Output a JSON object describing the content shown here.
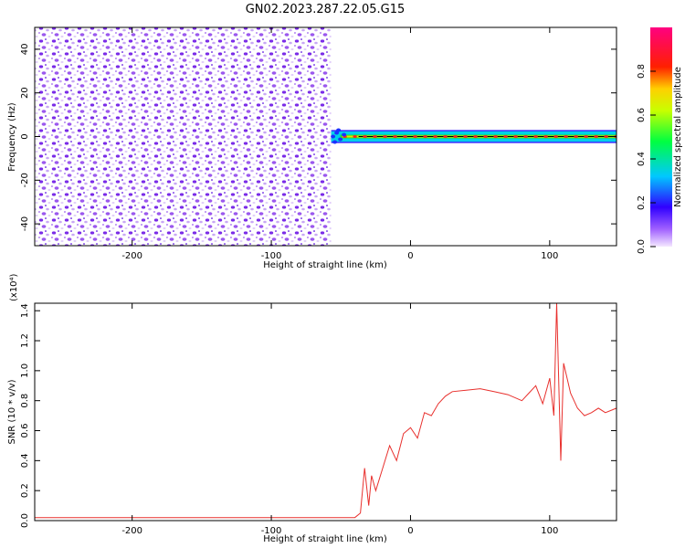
{
  "figure": {
    "title": "GN02.2023.287.22.05.G15"
  },
  "chart_data": [
    {
      "type": "heatmap",
      "xlabel": "Height of straight line (km)",
      "ylabel": "Frequency (Hz)",
      "xlim": [
        -270,
        148
      ],
      "ylim": [
        -50,
        50
      ],
      "x_ticks": [
        -200,
        -100,
        0,
        100
      ],
      "y_ticks": [
        -40,
        -20,
        0,
        20,
        40
      ],
      "colorbar": {
        "label": "Normalized spectral amplitude",
        "range": [
          0.0,
          1.0
        ],
        "ticks": [
          0.0,
          0.2,
          0.4,
          0.6,
          0.8
        ],
        "colormap": "rainbow (magenta-violet low, blue, cyan, green, yellow, red, pink high)"
      },
      "regions": [
        {
          "x_range": [
            -270,
            -57
          ],
          "frequency_range": [
            -50,
            50
          ],
          "amplitude": "0.0-0.2 scattered noise (violet speckle)"
        },
        {
          "x_range": [
            -57,
            148
          ],
          "frequency_range": [
            -3,
            3
          ],
          "amplitude": "0.2-0.9 narrow band centered near 0 Hz"
        }
      ]
    },
    {
      "type": "line",
      "xlabel": "Height of straight line (km)",
      "ylabel": "SNR (10 * v/v)",
      "y_multiplier": "(x10⁴)",
      "xlim": [
        -270,
        148
      ],
      "ylim": [
        0.0,
        1.45
      ],
      "x_ticks": [
        -200,
        -100,
        0,
        100
      ],
      "y_ticks": [
        0.0,
        0.2,
        0.4,
        0.6,
        0.8,
        1.0,
        1.2,
        1.4
      ],
      "color": "#e8302d",
      "series": [
        {
          "x": [
            -270,
            -230,
            -200,
            -150,
            -100,
            -60,
            -40,
            -36,
            -33,
            -30,
            -28,
            -25,
            -20,
            -15,
            -10,
            -5,
            0,
            5,
            10,
            15,
            20,
            25,
            30,
            40,
            50,
            60,
            70,
            80,
            85,
            90,
            95,
            100,
            103,
            105,
            108,
            110,
            115,
            120,
            125,
            130,
            135,
            140,
            148
          ],
          "y": [
            0.02,
            0.02,
            0.02,
            0.02,
            0.02,
            0.02,
            0.02,
            0.05,
            0.35,
            0.1,
            0.3,
            0.2,
            0.35,
            0.5,
            0.4,
            0.58,
            0.62,
            0.55,
            0.72,
            0.7,
            0.78,
            0.83,
            0.86,
            0.87,
            0.88,
            0.86,
            0.84,
            0.8,
            0.85,
            0.9,
            0.78,
            0.95,
            0.7,
            1.45,
            0.4,
            1.05,
            0.85,
            0.75,
            0.7,
            0.72,
            0.75,
            0.72,
            0.75
          ]
        }
      ]
    }
  ]
}
